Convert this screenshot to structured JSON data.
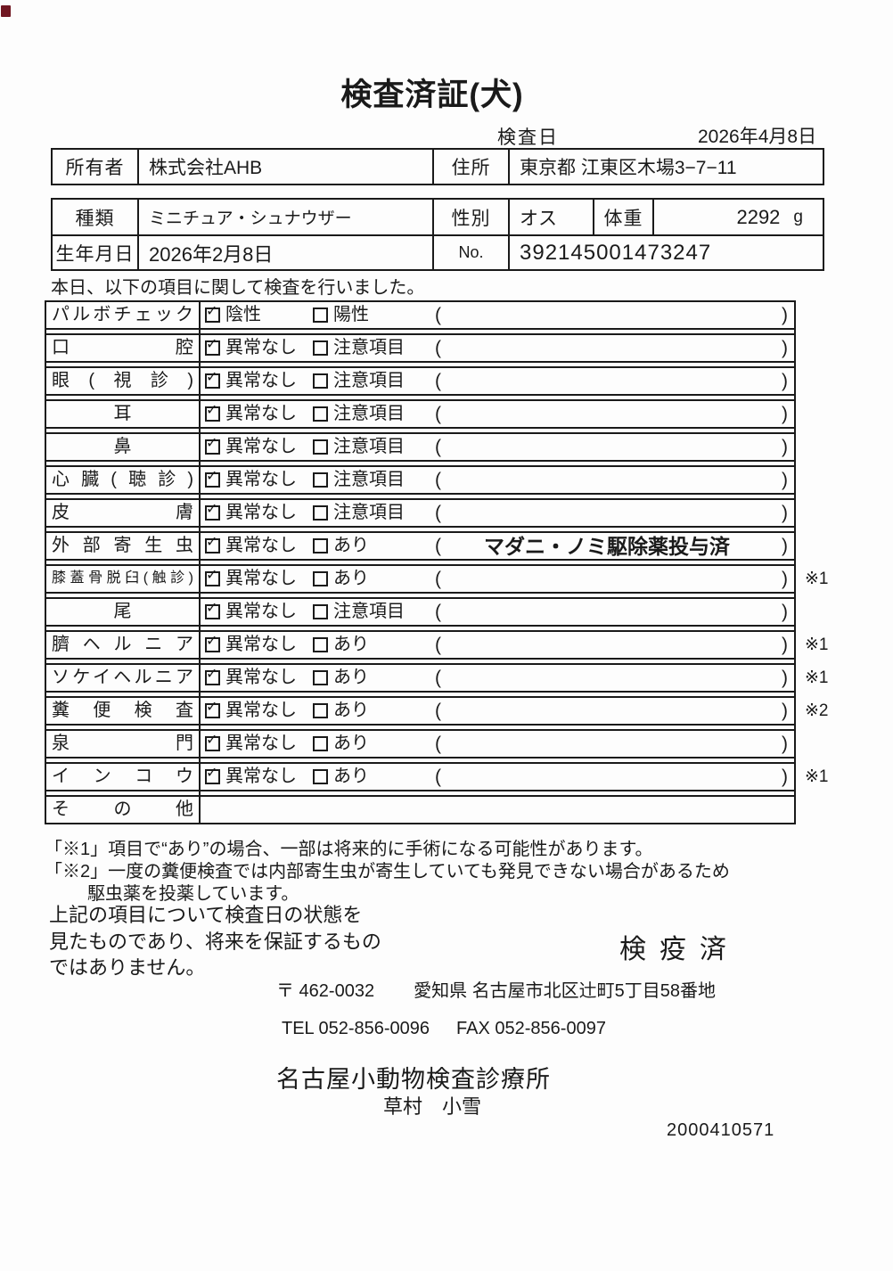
{
  "page": {
    "title": "検査済証(犬)",
    "inspection_date_label": "検査日",
    "inspection_date": "2026年4月8日",
    "intro": "本日、以下の項目に関して検査を行いました。"
  },
  "owner_table": {
    "owner_label": "所有者",
    "owner_value": "株式会社AHB",
    "address_label": "住所",
    "address_value": "東京都 江東区木場3−7−11"
  },
  "pet_table": {
    "breed_label": "種類",
    "breed_value": "ミニチュア・シュナウザー",
    "sex_label": "性別",
    "sex_value": "オス",
    "weight_label": "体重",
    "weight_value": "2292",
    "weight_unit": "g",
    "birth_label": "生年月日",
    "birth_value": "2026年2月8日",
    "no_label": "No.",
    "no_value": "392145001473247"
  },
  "checklist": {
    "check_icon": "✓",
    "paren_open": "(",
    "paren_close": ")",
    "rows": [
      {
        "name": "パルボチェック",
        "checked_label": "陰性",
        "unchecked_label": "陽性",
        "paren_text": "",
        "note": ""
      },
      {
        "name": "口腔",
        "checked_label": "異常なし",
        "unchecked_label": "注意項目",
        "paren_text": "",
        "note": ""
      },
      {
        "name": "眼(視診)",
        "checked_label": "異常なし",
        "unchecked_label": "注意項目",
        "paren_text": "",
        "note": ""
      },
      {
        "name": "耳",
        "checked_label": "異常なし",
        "unchecked_label": "注意項目",
        "paren_text": "",
        "note": ""
      },
      {
        "name": "鼻",
        "checked_label": "異常なし",
        "unchecked_label": "注意項目",
        "paren_text": "",
        "note": ""
      },
      {
        "name": "心臓(聴診)",
        "checked_label": "異常なし",
        "unchecked_label": "注意項目",
        "paren_text": "",
        "note": ""
      },
      {
        "name": "皮膚",
        "checked_label": "異常なし",
        "unchecked_label": "注意項目",
        "paren_text": "",
        "note": ""
      },
      {
        "name": "外部寄生虫",
        "checked_label": "異常なし",
        "unchecked_label": "あり",
        "paren_text": "マダニ・ノミ駆除薬投与済",
        "note": ""
      },
      {
        "name": "膝蓋骨脱臼(触診)",
        "checked_label": "異常なし",
        "unchecked_label": "あり",
        "paren_text": "",
        "note": "※1"
      },
      {
        "name": "尾",
        "checked_label": "異常なし",
        "unchecked_label": "注意項目",
        "paren_text": "",
        "note": ""
      },
      {
        "name": "臍ヘルニア",
        "checked_label": "異常なし",
        "unchecked_label": "あり",
        "paren_text": "",
        "note": "※1"
      },
      {
        "name": "ソケイヘルニア",
        "checked_label": "異常なし",
        "unchecked_label": "あり",
        "paren_text": "",
        "note": "※1"
      },
      {
        "name": "糞便検査",
        "checked_label": "異常なし",
        "unchecked_label": "あり",
        "paren_text": "",
        "note": "※2"
      },
      {
        "name": "泉門",
        "checked_label": "異常なし",
        "unchecked_label": "あり",
        "paren_text": "",
        "note": ""
      },
      {
        "name": "インコウ",
        "checked_label": "異常なし",
        "unchecked_label": "あり",
        "paren_text": "",
        "note": "※1"
      },
      {
        "name": "その他",
        "checked_label": "",
        "unchecked_label": "",
        "paren_text": "",
        "note": ""
      }
    ]
  },
  "footnotes": {
    "note1": "「※1」項目で“あり”の場合、一部は将来的に手術になる可能性があります。",
    "note2_line1": "「※2」一度の糞便検査では内部寄生虫が寄生していても発見できない場合があるため",
    "note2_line2": "駆虫薬を投薬しています。"
  },
  "disclaimer": {
    "text": "上記の項目について検査日の状態を\n見たものであり、将来を保証するもの\nではありません。"
  },
  "clinic": {
    "stamp": "検疫済",
    "postal": "〒 462-0032",
    "address": "愛知県 名古屋市北区辻町5丁目58番地",
    "tel": "TEL 052-856-0096",
    "fax": "FAX 052-856-0097",
    "name": "名古屋小動物検査診療所",
    "vet_name": "草村　小雪",
    "serial": "2000410571"
  }
}
